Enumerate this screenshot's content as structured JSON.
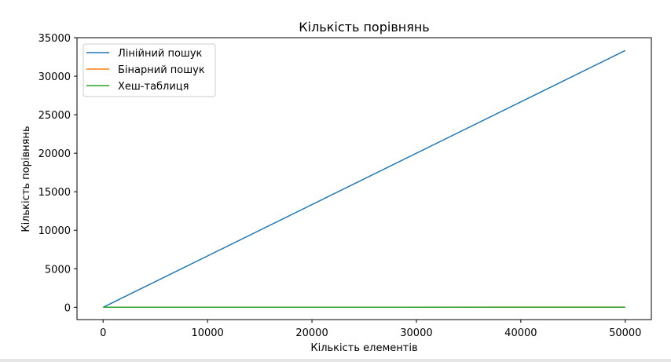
{
  "chart_data": {
    "type": "line",
    "title": "Кількість порівнянь",
    "xlabel": "Кількість елементів",
    "ylabel": "Кількість порівнянь",
    "xlim": [
      -2500,
      52500
    ],
    "ylim": [
      -1600,
      35000
    ],
    "xticks": [
      0,
      10000,
      20000,
      30000,
      40000,
      50000
    ],
    "yticks": [
      0,
      5000,
      10000,
      15000,
      20000,
      25000,
      30000,
      35000
    ],
    "grid": false,
    "legend_position": "top-left",
    "series": [
      {
        "name": "Лінійний пошук",
        "color": "#1f77b4",
        "x": [
          10,
          50000
        ],
        "y": [
          4,
          33333
        ]
      },
      {
        "name": "Бінарний пошук",
        "color": "#ff7f0e",
        "x": [
          10,
          50000
        ],
        "y": [
          3,
          16
        ]
      },
      {
        "name": "Хеш-таблиця",
        "color": "#2ca02c",
        "x": [
          10,
          50000
        ],
        "y": [
          1,
          1
        ]
      }
    ]
  }
}
